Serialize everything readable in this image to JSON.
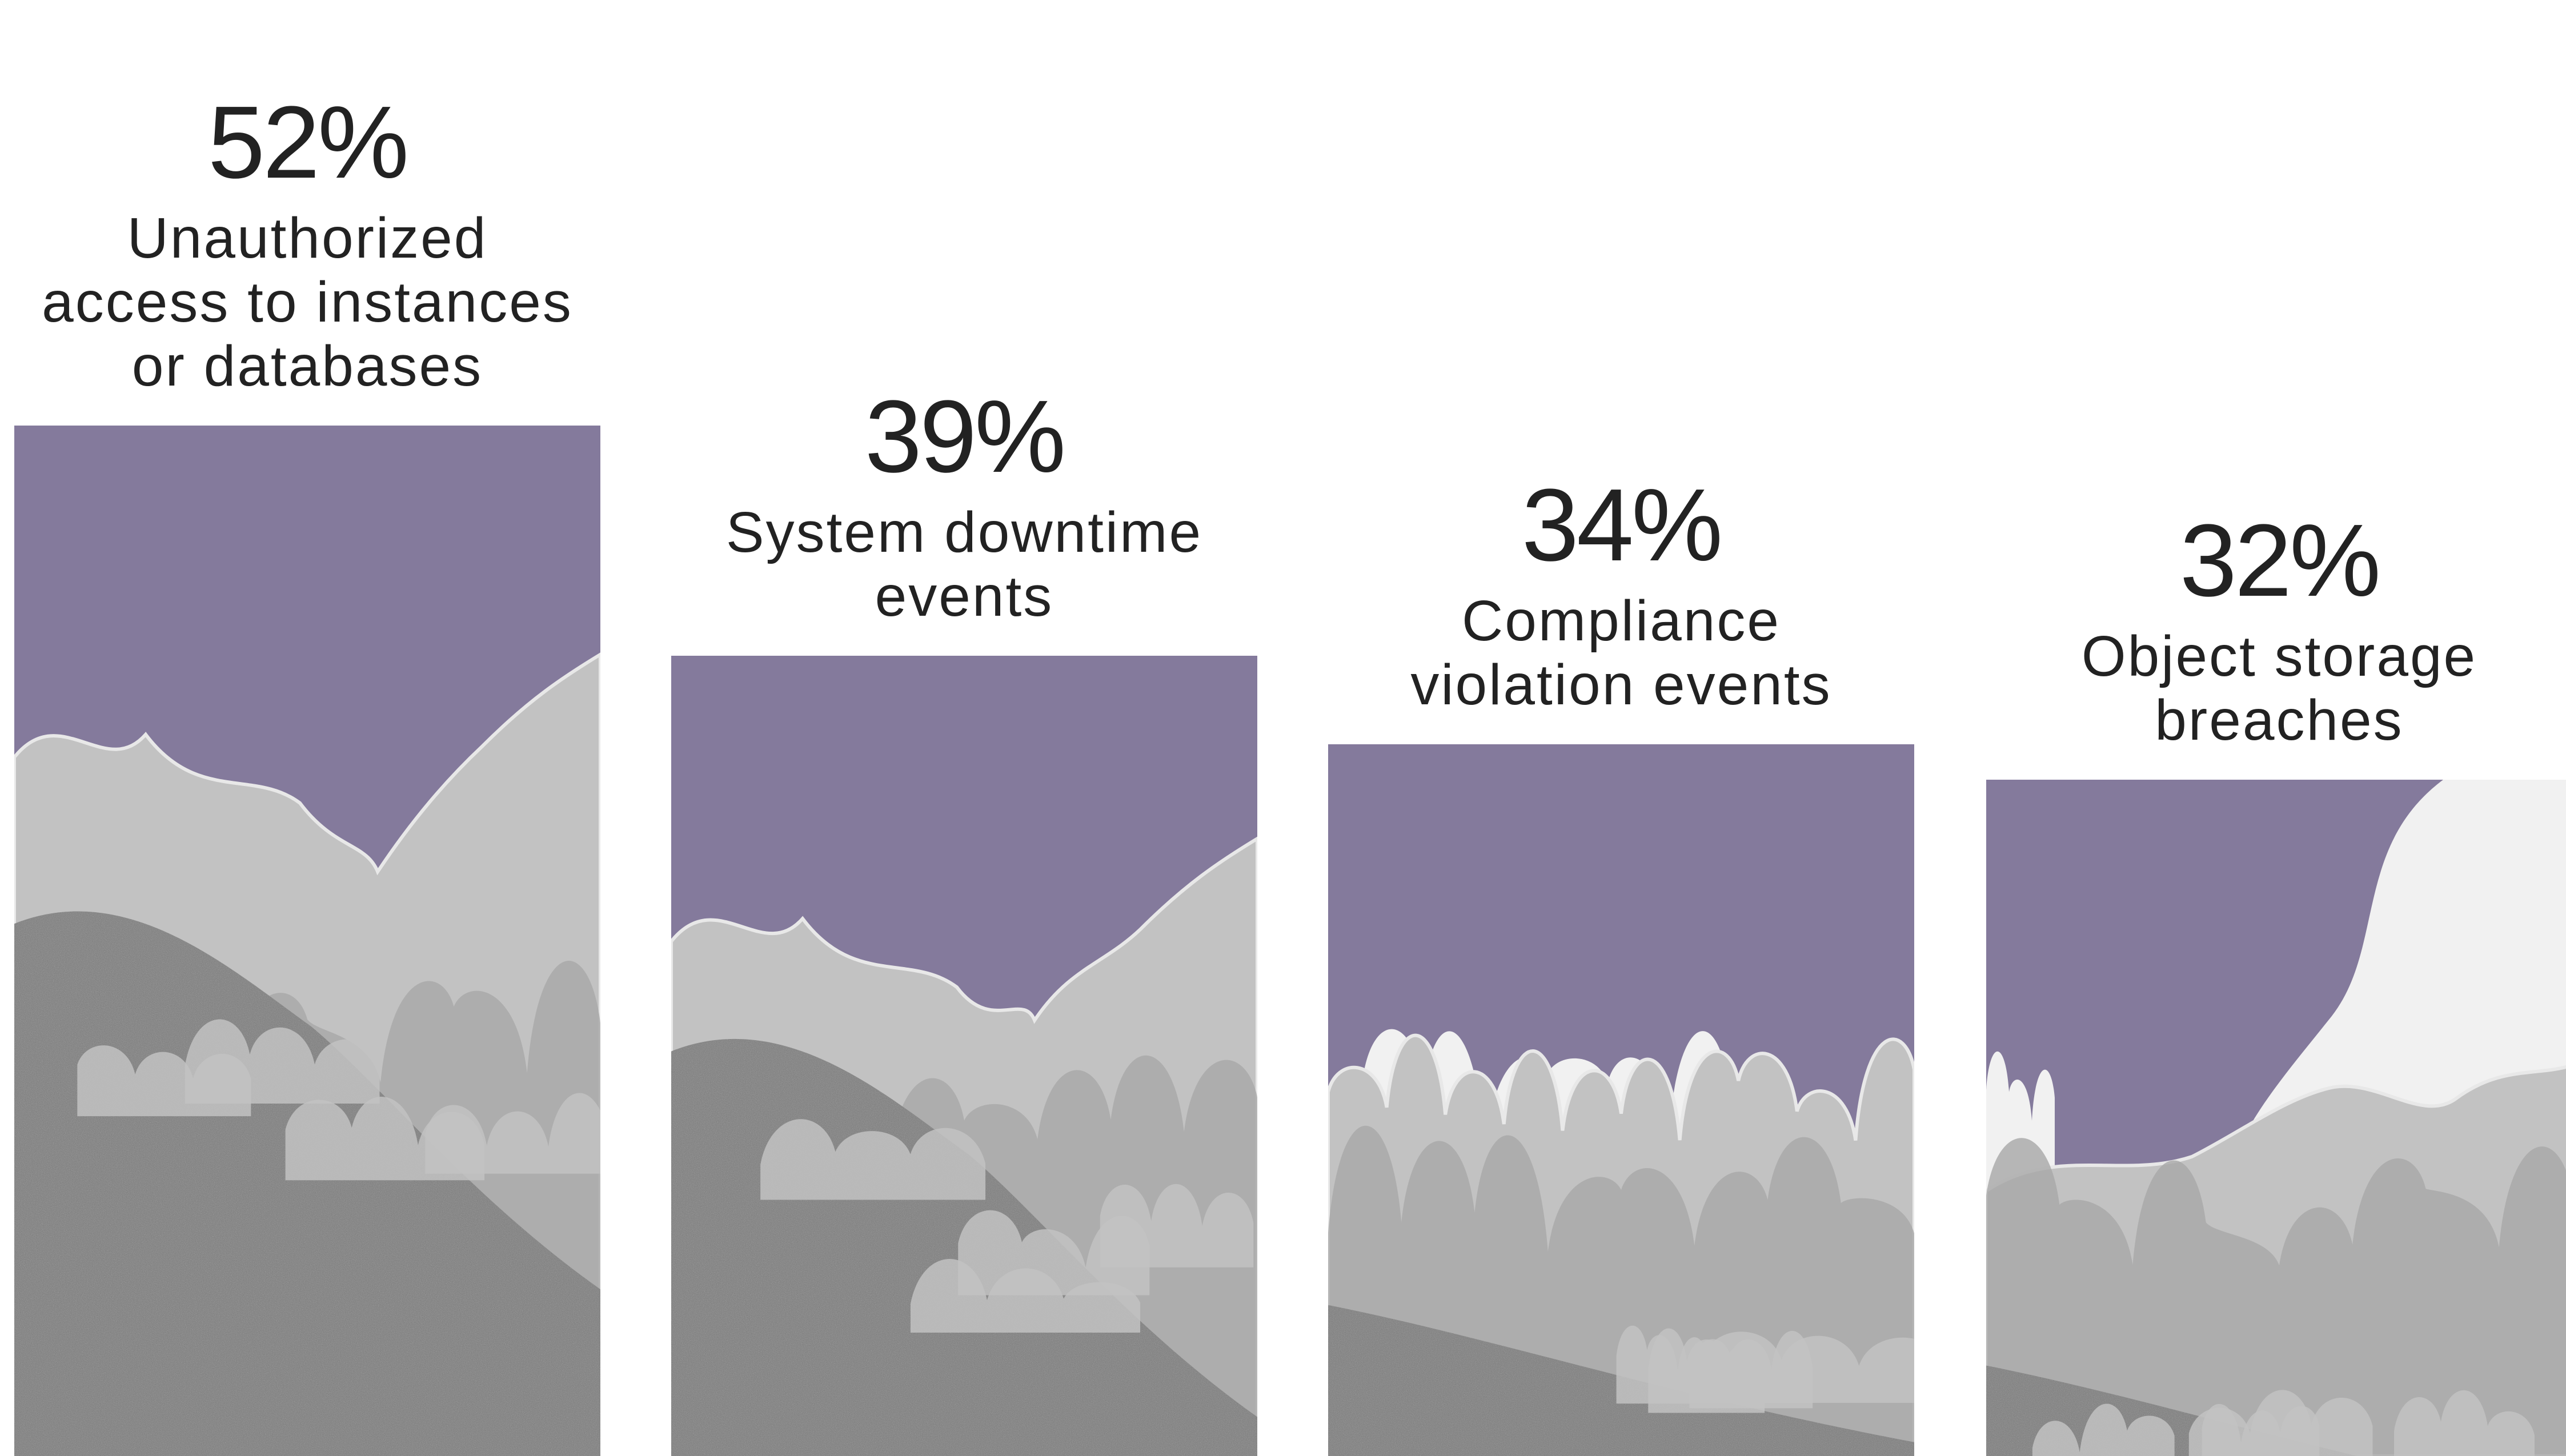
{
  "chart_data": {
    "type": "bar",
    "categories": [
      [
        "Unauthorized",
        "access to instances",
        "or databases"
      ],
      [
        "System downtime",
        "events"
      ],
      [
        "Compliance",
        "violation events"
      ],
      [
        "Object storage",
        "breaches"
      ]
    ],
    "values": [
      52,
      39,
      34,
      32
    ],
    "value_labels": [
      "52%",
      "39%",
      "34%",
      "32%"
    ],
    "bar_color": "#847a9c",
    "cloud_colors": {
      "light": "#f1f1f1",
      "mid": "#c2c2c2",
      "shade": "#a8a8a8",
      "dark": "#7b7b7b"
    },
    "title": "",
    "xlabel": "",
    "ylabel": "",
    "ylim": [
      0,
      100
    ],
    "grid": false,
    "legend": "none"
  }
}
